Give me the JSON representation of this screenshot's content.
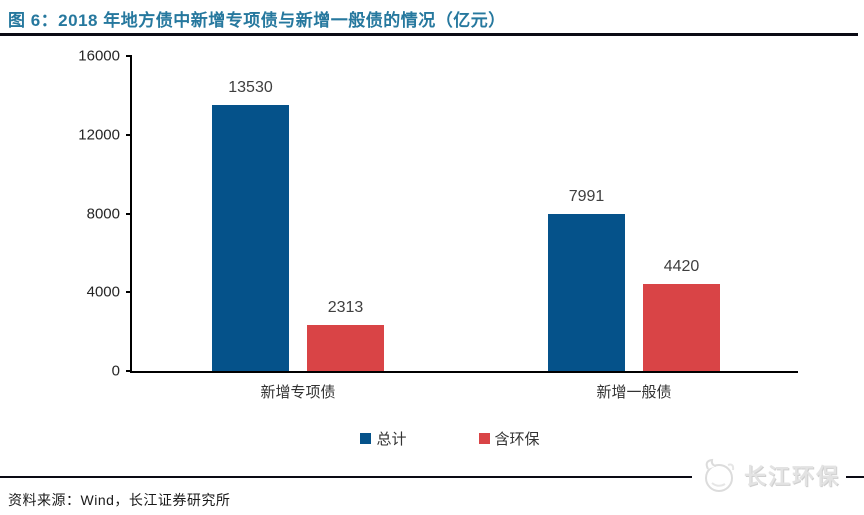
{
  "title": "图 6：2018 年地方债中新增专项债与新增一般债的情况（亿元）",
  "source_note": "资料来源：Wind，长江证券研究所",
  "watermark": {
    "brand": "长江环保",
    "icon": "dolphin-icon"
  },
  "colors": {
    "title": "#26789e",
    "rule": "#0a0a14",
    "bar_total": "#05528a",
    "bar_env": "#d94446",
    "axis": "#000000",
    "watermark_gray": "#e3e3e3"
  },
  "chart_data": {
    "type": "bar",
    "title": "2018 年地方债中新增专项债与新增一般债的情况（亿元）",
    "categories": [
      "新增专项债",
      "新增一般债"
    ],
    "series": [
      {
        "name": "总计",
        "color": "#05528a",
        "values": [
          13530,
          7991
        ]
      },
      {
        "name": "含环保",
        "color": "#d94446",
        "values": [
          2313,
          4420
        ]
      }
    ],
    "xlabel": "",
    "ylabel": "",
    "ylim": [
      0,
      16000
    ],
    "yticks": [
      0,
      4000,
      8000,
      12000,
      16000
    ],
    "grid": false,
    "legend_position": "bottom"
  }
}
